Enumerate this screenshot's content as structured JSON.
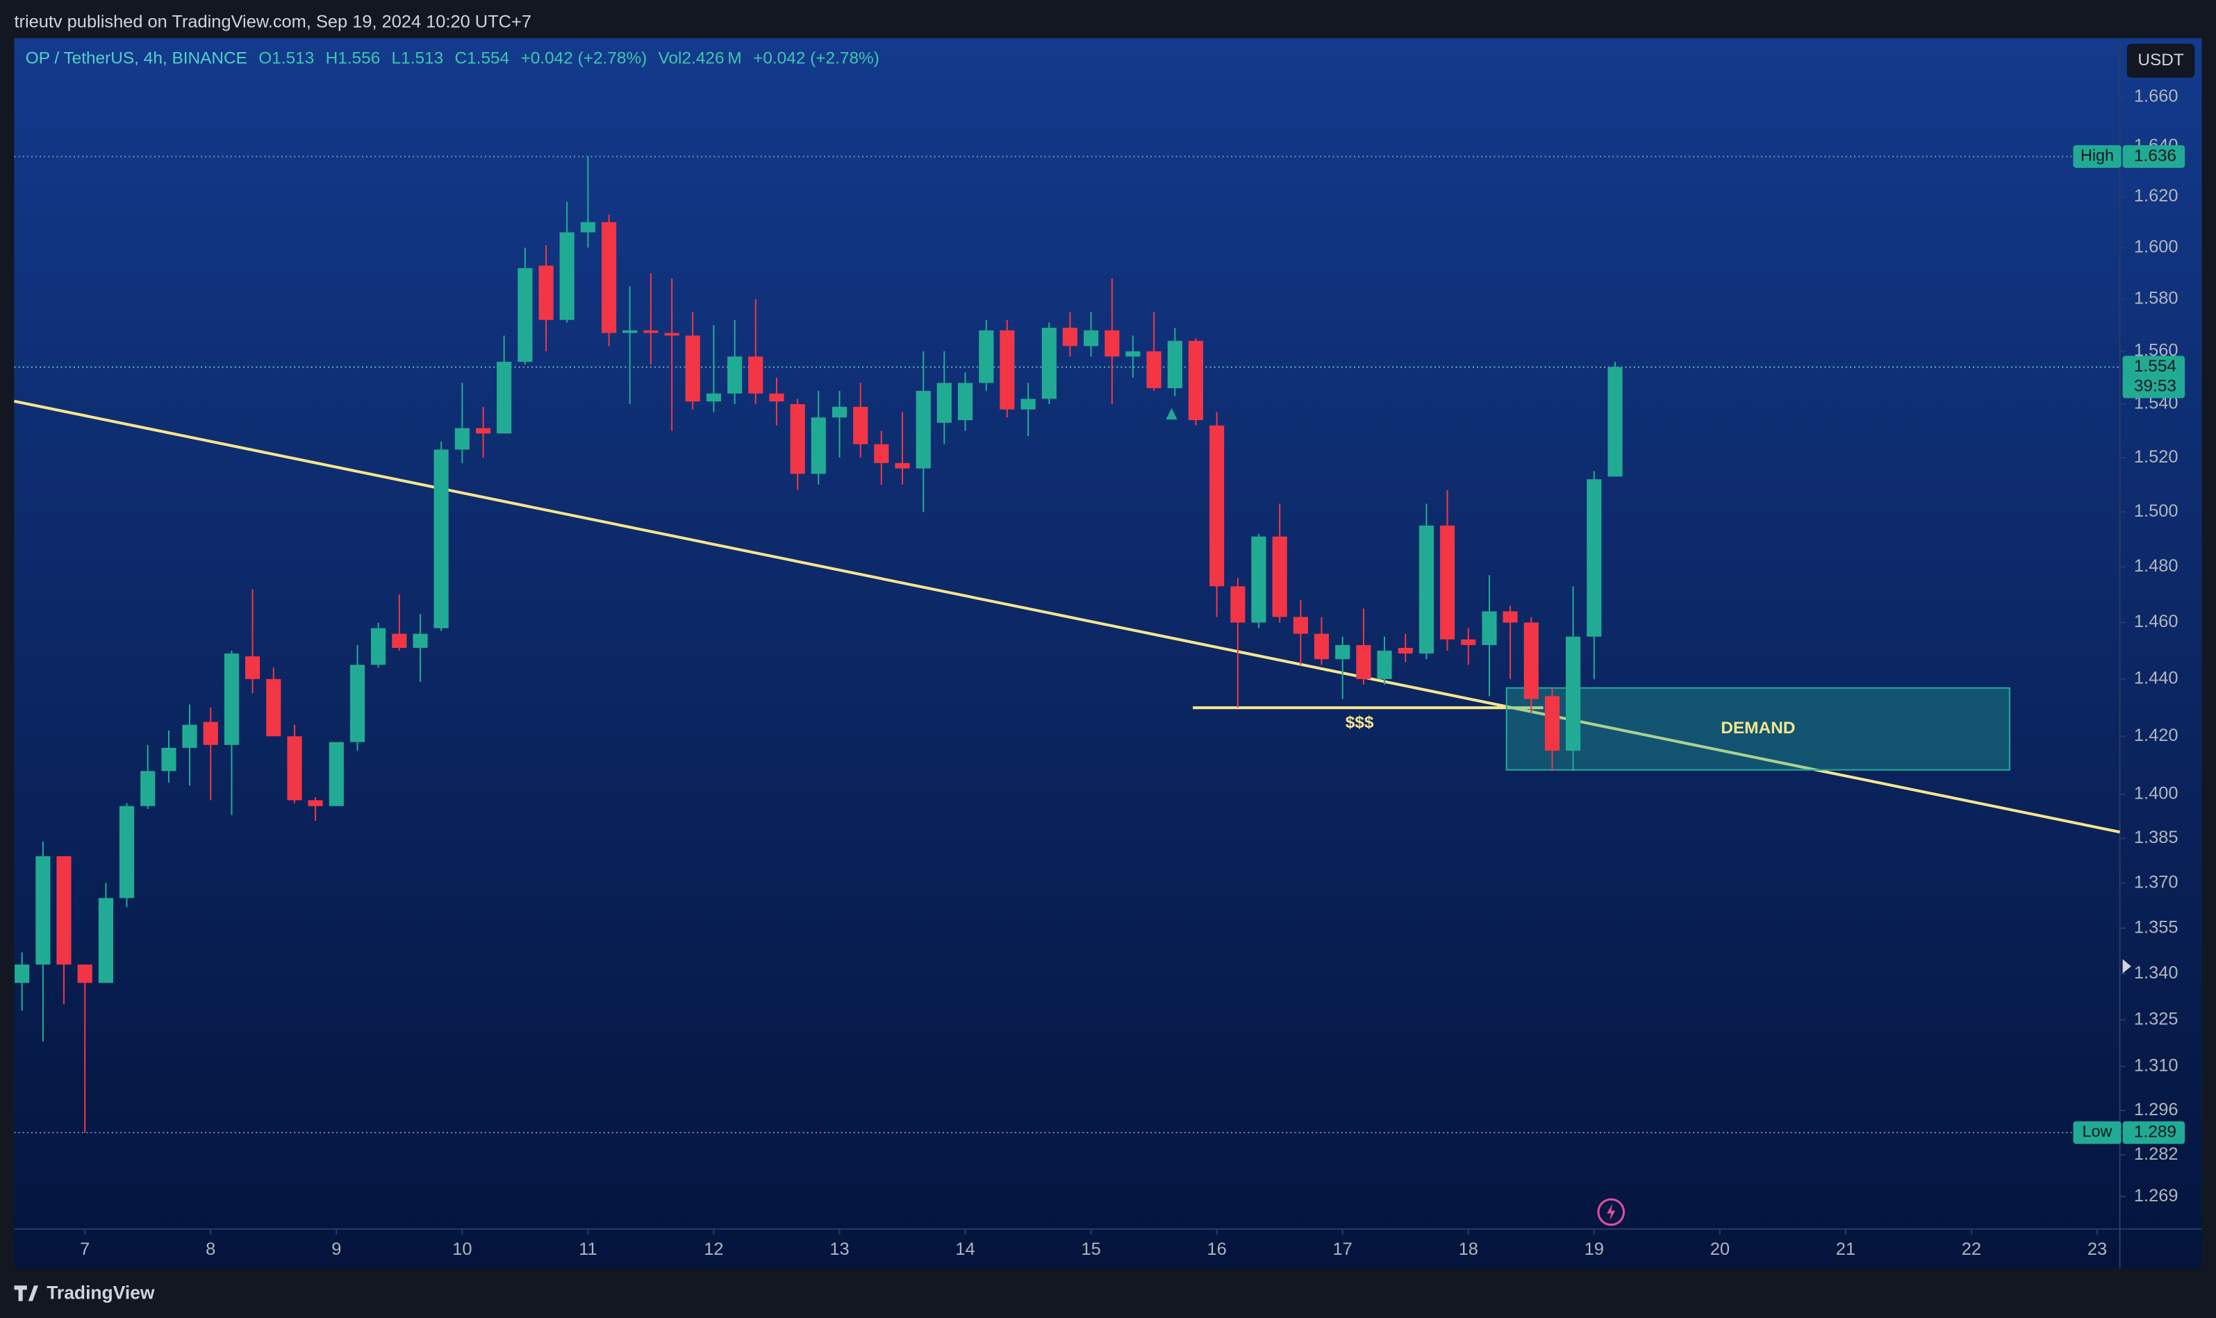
{
  "header": {
    "text": "trieutv published on TradingView.com, Sep 19, 2024 10:20 UTC+7"
  },
  "footer": {
    "brand": "TradingView"
  },
  "chart_data": {
    "type": "candlestick",
    "legend_symbol": "OP / TetherUS, 4h, BINANCE",
    "legend_items": [
      "O1.513",
      "H1.556",
      "L1.513",
      "C1.554",
      "+0.042 (+2.78%)",
      "Vol2.426 M",
      "+0.042 (+2.78%)"
    ],
    "currency": "USDT",
    "log_scale": true,
    "up_color": "#22ab94",
    "down_color": "#f23645",
    "x": [
      6.5,
      6.667,
      6.833,
      7,
      7.167,
      7.333,
      7.5,
      7.667,
      7.833,
      8,
      8.167,
      8.333,
      8.5,
      8.667,
      8.833,
      9,
      9.167,
      9.333,
      9.5,
      9.667,
      9.833,
      10,
      10.167,
      10.333,
      10.5,
      10.667,
      10.833,
      11,
      11.167,
      11.333,
      11.5,
      11.667,
      11.833,
      12,
      12.167,
      12.333,
      12.5,
      12.667,
      12.833,
      13,
      13.167,
      13.333,
      13.5,
      13.667,
      13.833,
      14,
      14.167,
      14.333,
      14.5,
      14.667,
      14.833,
      15,
      15.167,
      15.333,
      15.5,
      15.667,
      15.833,
      16,
      16.167,
      16.333,
      16.5,
      16.667,
      16.833,
      17,
      17.167,
      17.333,
      17.5,
      17.667,
      17.833,
      18,
      18.167,
      18.333,
      18.5,
      18.667,
      18.833,
      19,
      19.167
    ],
    "open": [
      1.337,
      1.343,
      1.379,
      1.343,
      1.337,
      1.365,
      1.396,
      1.408,
      1.416,
      1.425,
      1.417,
      1.448,
      1.44,
      1.42,
      1.398,
      1.396,
      1.418,
      1.445,
      1.456,
      1.451,
      1.458,
      1.523,
      1.531,
      1.529,
      1.556,
      1.593,
      1.572,
      1.606,
      1.61,
      1.567,
      1.568,
      1.567,
      1.566,
      1.541,
      1.544,
      1.558,
      1.544,
      1.54,
      1.514,
      1.535,
      1.539,
      1.525,
      1.518,
      1.516,
      1.533,
      1.534,
      1.548,
      1.568,
      1.538,
      1.542,
      1.569,
      1.562,
      1.568,
      1.558,
      1.56,
      1.546,
      1.564,
      1.532,
      1.473,
      1.46,
      1.491,
      1.462,
      1.456,
      1.447,
      1.452,
      1.44,
      1.451,
      1.449,
      1.495,
      1.454,
      1.452,
      1.464,
      1.46,
      1.434,
      1.415,
      1.455,
      1.513
    ],
    "high": [
      1.347,
      1.384,
      1.379,
      1.343,
      1.37,
      1.397,
      1.417,
      1.422,
      1.431,
      1.43,
      1.45,
      1.472,
      1.444,
      1.424,
      1.399,
      1.418,
      1.452,
      1.46,
      1.47,
      1.463,
      1.526,
      1.548,
      1.539,
      1.566,
      1.6,
      1.601,
      1.618,
      1.636,
      1.613,
      1.585,
      1.59,
      1.588,
      1.575,
      1.57,
      1.572,
      1.58,
      1.55,
      1.542,
      1.545,
      1.545,
      1.548,
      1.53,
      1.537,
      1.56,
      1.56,
      1.552,
      1.572,
      1.572,
      1.548,
      1.571,
      1.575,
      1.575,
      1.588,
      1.566,
      1.575,
      1.569,
      1.565,
      1.537,
      1.476,
      1.492,
      1.503,
      1.468,
      1.462,
      1.455,
      1.465,
      1.455,
      1.456,
      1.503,
      1.508,
      1.458,
      1.477,
      1.466,
      1.462,
      1.437,
      1.473,
      1.515,
      1.556
    ],
    "low": [
      1.328,
      1.318,
      1.33,
      1.289,
      1.337,
      1.362,
      1.395,
      1.404,
      1.403,
      1.398,
      1.393,
      1.435,
      1.42,
      1.397,
      1.391,
      1.396,
      1.415,
      1.444,
      1.45,
      1.439,
      1.457,
      1.518,
      1.52,
      1.529,
      1.555,
      1.56,
      1.571,
      1.6,
      1.562,
      1.54,
      1.555,
      1.53,
      1.538,
      1.537,
      1.54,
      1.54,
      1.532,
      1.508,
      1.51,
      1.52,
      1.52,
      1.51,
      1.51,
      1.5,
      1.525,
      1.53,
      1.545,
      1.535,
      1.528,
      1.54,
      1.558,
      1.558,
      1.54,
      1.55,
      1.545,
      1.543,
      1.532,
      1.462,
      1.43,
      1.458,
      1.46,
      1.445,
      1.445,
      1.433,
      1.438,
      1.438,
      1.446,
      1.447,
      1.45,
      1.445,
      1.434,
      1.44,
      1.428,
      1.408,
      1.408,
      1.44,
      1.513
    ],
    "close": [
      1.343,
      1.379,
      1.343,
      1.337,
      1.365,
      1.396,
      1.408,
      1.416,
      1.424,
      1.417,
      1.449,
      1.44,
      1.42,
      1.398,
      1.396,
      1.418,
      1.445,
      1.458,
      1.451,
      1.456,
      1.523,
      1.531,
      1.529,
      1.556,
      1.592,
      1.572,
      1.606,
      1.61,
      1.567,
      1.568,
      1.567,
      1.566,
      1.541,
      1.544,
      1.558,
      1.544,
      1.541,
      1.514,
      1.535,
      1.539,
      1.525,
      1.518,
      1.516,
      1.545,
      1.548,
      1.548,
      1.568,
      1.538,
      1.542,
      1.569,
      1.562,
      1.568,
      1.558,
      1.56,
      1.546,
      1.564,
      1.534,
      1.473,
      1.46,
      1.491,
      1.462,
      1.456,
      1.447,
      1.452,
      1.44,
      1.45,
      1.449,
      1.495,
      1.454,
      1.452,
      1.464,
      1.46,
      1.433,
      1.415,
      1.455,
      1.512,
      1.554
    ],
    "xlim": [
      6.438,
      23.18
    ],
    "xticks": [
      7,
      8,
      9,
      10,
      11,
      12,
      13,
      14,
      15,
      16,
      17,
      18,
      19,
      20,
      21,
      22,
      23
    ],
    "ylim": [
      1.259,
      1.684
    ],
    "yticks": [
      {
        "value": 1.66,
        "label": "1.660"
      },
      {
        "value": 1.64,
        "label": "1.640"
      },
      {
        "value": 1.62,
        "label": "1.620"
      },
      {
        "value": 1.6,
        "label": "1.600"
      },
      {
        "value": 1.58,
        "label": "1.580"
      },
      {
        "value": 1.56,
        "label": "1.560"
      },
      {
        "value": 1.54,
        "label": "1.540"
      },
      {
        "value": 1.52,
        "label": "1.520"
      },
      {
        "value": 1.5,
        "label": "1.500"
      },
      {
        "value": 1.48,
        "label": "1.480"
      },
      {
        "value": 1.46,
        "label": "1.460"
      },
      {
        "value": 1.44,
        "label": "1.440"
      },
      {
        "value": 1.42,
        "label": "1.420"
      },
      {
        "value": 1.4,
        "label": "1.400"
      },
      1.385,
      {
        "value": 1.37,
        "label": "1.370"
      },
      1.355,
      {
        "value": 1.34,
        "label": "1.340"
      },
      1.325,
      {
        "value": 1.31,
        "label": "1.310"
      },
      1.296,
      1.282,
      1.269
    ],
    "high_marker": {
      "label": "High",
      "value": 1.636
    },
    "low_marker": {
      "label": "Low",
      "value": 1.289
    },
    "last_price": {
      "value": 1.554,
      "countdown": "39:53"
    },
    "annotations": {
      "liquidity": "$$$",
      "zone": "DEMAND"
    }
  }
}
